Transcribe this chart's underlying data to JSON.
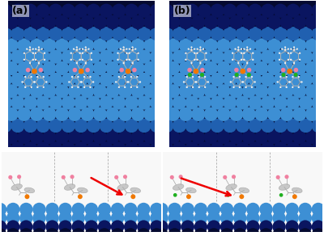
{
  "fig_width": 4.0,
  "fig_height": 2.92,
  "dpi": 100,
  "label_a": "(a)",
  "label_b": "(b)",
  "label_fontsize": 9,
  "label_color": "black",
  "bg_color": "white",
  "cu_light": "#3d8fd4",
  "cu_mid": "#2060b0",
  "cu_dark": "#0a1560",
  "cu_darkest": "#050a30",
  "mol_bond": "#b0b0b0",
  "mol_atom_c": "#c8c8c8",
  "pink": "#f080a0",
  "orange": "#f07800",
  "green": "#20b020",
  "white_atom": "#f0f0f0",
  "red_arrow": "#ee0000",
  "side_bg": "#f8f8f8",
  "dashed": "#aaaaaa"
}
